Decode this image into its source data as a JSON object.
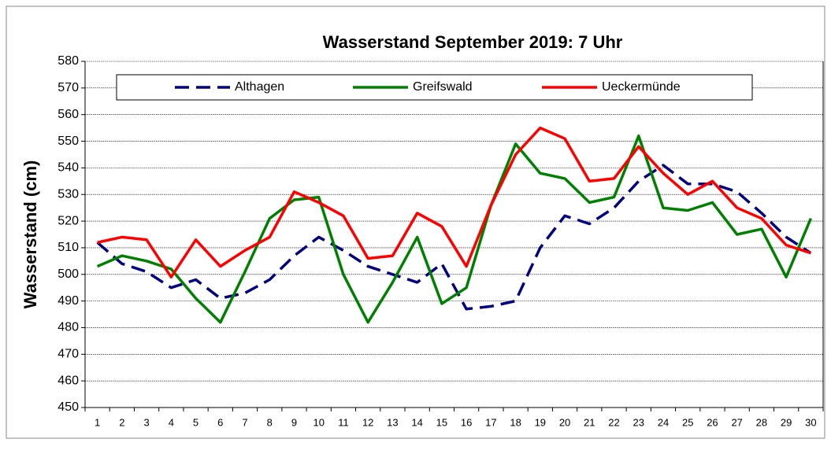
{
  "chart_data": {
    "type": "line",
    "title": "Wasserstand September 2019: 7 Uhr",
    "y_label": "Wasserstand (cm)",
    "categories": [
      "1",
      "2",
      "3",
      "4",
      "5",
      "6",
      "7",
      "8",
      "9",
      "10",
      "11",
      "12",
      "13",
      "14",
      "15",
      "16",
      "17",
      "18",
      "19",
      "20",
      "21",
      "22",
      "23",
      "24",
      "25",
      "26",
      "27",
      "28",
      "29",
      "30"
    ],
    "series": [
      {
        "name": "Althagen",
        "color": "#000080",
        "dashed": true,
        "values": [
          512,
          504,
          501,
          495,
          498,
          491,
          493,
          498,
          507,
          514,
          509,
          503,
          500,
          497,
          504,
          487,
          488,
          490,
          510,
          522,
          519,
          525,
          535,
          541,
          534,
          534,
          531,
          523,
          514,
          508
        ]
      },
      {
        "name": "Greifswald",
        "color": "#008000",
        "values": [
          503,
          507,
          505,
          502,
          491,
          482,
          501,
          521,
          528,
          529,
          500,
          482,
          497,
          514,
          489,
          495,
          526,
          549,
          538,
          536,
          527,
          529,
          552,
          525,
          524,
          527,
          515,
          517,
          499,
          521
        ]
      },
      {
        "name": "Ueckermünde",
        "color": "#ff0000",
        "values": [
          512,
          514,
          513,
          499,
          513,
          503,
          509,
          514,
          531,
          527,
          522,
          506,
          507,
          523,
          518,
          503,
          526,
          545,
          555,
          551,
          535,
          536,
          548,
          538,
          530,
          535,
          525,
          521,
          511,
          508
        ]
      }
    ],
    "ylim": [
      450,
      580
    ],
    "yticks": [
      450,
      460,
      470,
      480,
      490,
      500,
      510,
      520,
      530,
      540,
      550,
      560,
      570,
      580
    ],
    "grid": true,
    "legend": "top"
  }
}
